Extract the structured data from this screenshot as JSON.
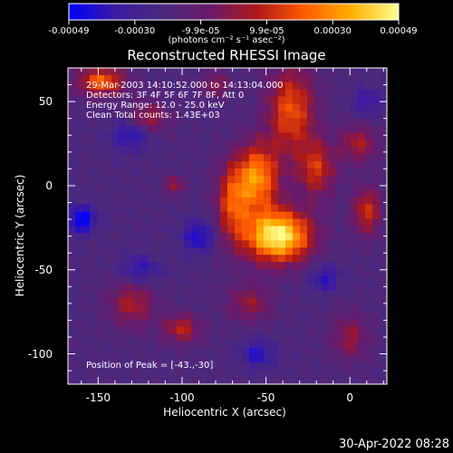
{
  "colorbar": {
    "ticks": [
      "-0.00049",
      "-0.00030",
      "-9.9e-05",
      "9.9e-05",
      "0.00030",
      "0.00049"
    ],
    "units": "(photons cm⁻² s⁻¹ asec⁻²)",
    "colors": [
      "#0000ff",
      "#3c1aa0",
      "#4a2a7e",
      "#6a1a6a",
      "#b01818",
      "#ff5a00",
      "#ffb000",
      "#ffff90"
    ]
  },
  "chart_data": {
    "type": "heatmap",
    "title": "Reconstructed RHESSI Image",
    "xlabel": "Heliocentric X (arcsec)",
    "ylabel": "Heliocentric Y (arcsec)",
    "xlim": [
      -168,
      22
    ],
    "ylim": [
      -118,
      70
    ],
    "xticks": [
      -150,
      -100,
      -50,
      0
    ],
    "yticks": [
      50,
      0,
      -50,
      -100
    ],
    "annotations": [
      "29-Mar-2003 14:10:52.000 to 14:13:04.000",
      "Detectors: 3F 4F 5F 6F 7F 8F, Att 0",
      "Energy Range: 12.0 - 25.0 keV",
      "Clean     Total counts: 1.43E+03"
    ],
    "peak_label": "Position of Peak = [-43.,-30]",
    "peak": [
      -43,
      -30
    ],
    "value_range": [
      -0.00049,
      0.00049
    ],
    "sources": [
      {
        "x": -43,
        "y": -30,
        "amp": 1.0,
        "sx": 14,
        "sy": 11
      },
      {
        "x": -55,
        "y": 5,
        "amp": 0.7,
        "sx": 9,
        "sy": 14
      },
      {
        "x": -35,
        "y": 45,
        "amp": 0.55,
        "sx": 10,
        "sy": 18
      },
      {
        "x": -20,
        "y": 10,
        "amp": 0.45,
        "sx": 8,
        "sy": 12
      },
      {
        "x": -148,
        "y": 62,
        "amp": 0.6,
        "sx": 10,
        "sy": 6
      },
      {
        "x": -120,
        "y": 40,
        "amp": 0.35,
        "sx": 8,
        "sy": 7
      },
      {
        "x": -70,
        "y": -10,
        "amp": 0.5,
        "sx": 7,
        "sy": 16
      },
      {
        "x": 10,
        "y": -15,
        "amp": 0.45,
        "sx": 6,
        "sy": 10
      },
      {
        "x": 5,
        "y": 25,
        "amp": 0.35,
        "sx": 8,
        "sy": 8
      },
      {
        "x": -130,
        "y": -70,
        "amp": 0.35,
        "sx": 10,
        "sy": 10
      },
      {
        "x": -100,
        "y": -85,
        "amp": 0.4,
        "sx": 8,
        "sy": 6
      },
      {
        "x": -60,
        "y": -70,
        "amp": 0.3,
        "sx": 10,
        "sy": 8
      },
      {
        "x": 0,
        "y": -90,
        "amp": 0.3,
        "sx": 8,
        "sy": 10
      },
      {
        "x": -105,
        "y": 0,
        "amp": 0.35,
        "sx": 4,
        "sy": 4
      },
      {
        "x": -80,
        "y": 60,
        "amp": 0.3,
        "sx": 6,
        "sy": 5
      },
      {
        "x": -160,
        "y": -20,
        "amp": -0.45,
        "sx": 6,
        "sy": 6
      },
      {
        "x": -130,
        "y": 30,
        "amp": -0.35,
        "sx": 8,
        "sy": 6
      },
      {
        "x": -90,
        "y": -30,
        "amp": -0.35,
        "sx": 7,
        "sy": 7
      },
      {
        "x": -125,
        "y": -50,
        "amp": -0.3,
        "sx": 8,
        "sy": 6
      },
      {
        "x": -15,
        "y": -55,
        "amp": -0.3,
        "sx": 6,
        "sy": 6
      },
      {
        "x": 10,
        "y": 50,
        "amp": -0.25,
        "sx": 6,
        "sy": 6
      },
      {
        "x": -55,
        "y": -100,
        "amp": -0.3,
        "sx": 7,
        "sy": 6
      }
    ]
  },
  "timestamp": "30-Apr-2022 08:28"
}
